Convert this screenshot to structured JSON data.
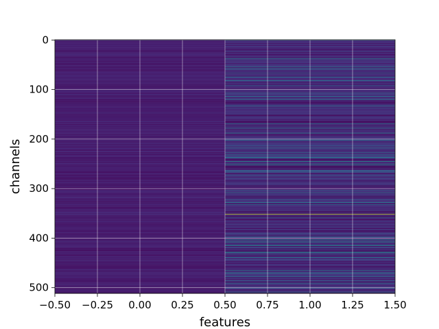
{
  "chart_data": {
    "type": "heatmap",
    "title": "",
    "xlabel": "features",
    "ylabel": "channels",
    "xlim": [
      -0.5,
      1.5
    ],
    "ylim": [
      511.5,
      -0.5
    ],
    "x_ticks": [
      "−0.50",
      "−0.25",
      "0.00",
      "0.25",
      "0.50",
      "0.75",
      "1.00",
      "1.25",
      "1.50"
    ],
    "y_ticks": [
      "0",
      "100",
      "200",
      "300",
      "400",
      "500"
    ],
    "colormap": "viridis",
    "grid": true,
    "n_rows": 512,
    "columns": [
      "0",
      "1"
    ],
    "notable_rows": [
      {
        "channel": 0,
        "values": [
          0.12,
          0.5
        ]
      },
      {
        "channel": 38,
        "values": [
          0.1,
          0.45
        ]
      },
      {
        "channel": 58,
        "values": [
          0.1,
          0.4
        ]
      },
      {
        "channel": 178,
        "values": [
          0.12,
          0.42
        ]
      },
      {
        "channel": 245,
        "values": [
          0.1,
          0.5
        ]
      },
      {
        "channel": 251,
        "values": [
          0.1,
          0.45
        ]
      },
      {
        "channel": 328,
        "values": [
          0.08,
          0.45
        ]
      },
      {
        "channel": 352,
        "values": [
          0.12,
          0.92
        ]
      },
      {
        "channel": 414,
        "values": [
          0.1,
          0.4
        ]
      },
      {
        "channel": 470,
        "values": [
          0.1,
          0.45
        ]
      },
      {
        "channel": 478,
        "values": [
          0.1,
          0.42
        ]
      }
    ]
  }
}
